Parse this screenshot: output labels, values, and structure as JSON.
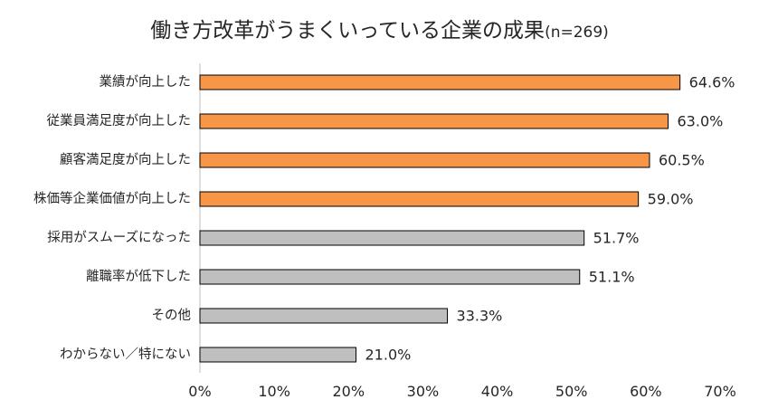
{
  "chart_data": {
    "type": "bar",
    "orientation": "horizontal",
    "title": "働き方改革がうまくいっている企業の成果",
    "subtitle": "(n=269)",
    "categories": [
      "業績が向上した",
      "従業員満足度が向上した",
      "顧客満足度が向上した",
      "株価等企業価値が向上した",
      "採用がスムーズになった",
      "離職率が低下した",
      "その他",
      "わからない／特にない"
    ],
    "values": [
      64.6,
      63.0,
      60.5,
      59.0,
      51.7,
      51.1,
      33.3,
      21.0
    ],
    "value_labels": [
      "64.6%",
      "63.0%",
      "60.5%",
      "59.0%",
      "51.7%",
      "51.1%",
      "33.3%",
      "21.0%"
    ],
    "bar_colors": [
      "#F79646",
      "#F79646",
      "#F79646",
      "#F79646",
      "#BFBFBF",
      "#BFBFBF",
      "#BFBFBF",
      "#BFBFBF"
    ],
    "bar_border_color": "#000000",
    "xlim": [
      0,
      70
    ],
    "xticks": [
      0,
      10,
      20,
      30,
      40,
      50,
      60,
      70
    ],
    "xtick_labels": [
      "0%",
      "10%",
      "20%",
      "30%",
      "40%",
      "50%",
      "60%",
      "70%"
    ],
    "grid": false,
    "legend": "none"
  }
}
